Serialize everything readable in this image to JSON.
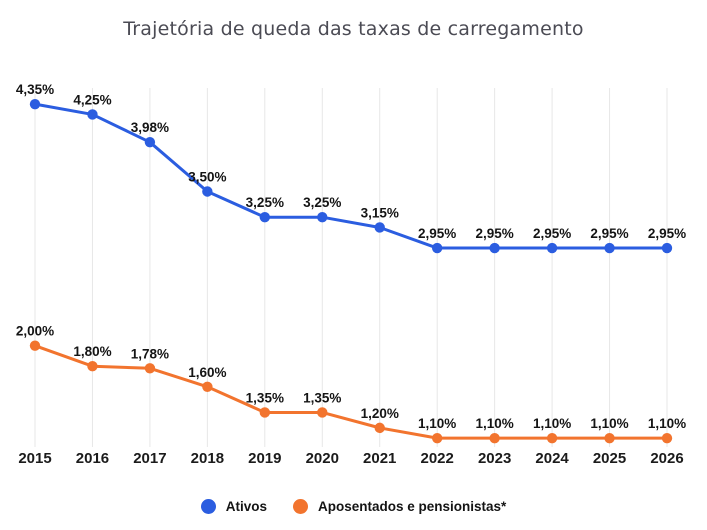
{
  "chart_data": {
    "type": "line",
    "title": "Trajetória de queda das taxas de carregamento",
    "categories": [
      "2015",
      "2016",
      "2017",
      "2018",
      "2019",
      "2020",
      "2021",
      "2022",
      "2023",
      "2024",
      "2025",
      "2026"
    ],
    "series": [
      {
        "name": "Ativos",
        "color": "#2b5de0",
        "values": [
          4.35,
          4.25,
          3.98,
          3.5,
          3.25,
          3.25,
          3.15,
          2.95,
          2.95,
          2.95,
          2.95,
          2.95
        ],
        "labels": [
          "4,35%",
          "4,25%",
          "3,98%",
          "3,50%",
          "3,25%",
          "3,25%",
          "3,15%",
          "2,95%",
          "2,95%",
          "2,95%",
          "2,95%",
          "2,95%"
        ]
      },
      {
        "name": "Aposentados e pensionistas*",
        "color": "#f2742e",
        "values": [
          2.0,
          1.8,
          1.78,
          1.6,
          1.35,
          1.35,
          1.2,
          1.1,
          1.1,
          1.1,
          1.1,
          1.1
        ],
        "labels": [
          "2,00%",
          "1,80%",
          "1,78%",
          "1,60%",
          "1,35%",
          "1,35%",
          "1,20%",
          "1,10%",
          "1,10%",
          "1,10%",
          "1,10%",
          "1,10%"
        ]
      }
    ],
    "xlabel": "",
    "ylabel": "",
    "ylim": [
      1.0,
      4.5
    ],
    "y_axis_visible": false,
    "grid": "vertical-only",
    "grid_color": "#e7e7e7",
    "data_label_format": "0,00%",
    "legend_position": "bottom",
    "title_color": "#4b4b54",
    "label_color": "#141414"
  }
}
